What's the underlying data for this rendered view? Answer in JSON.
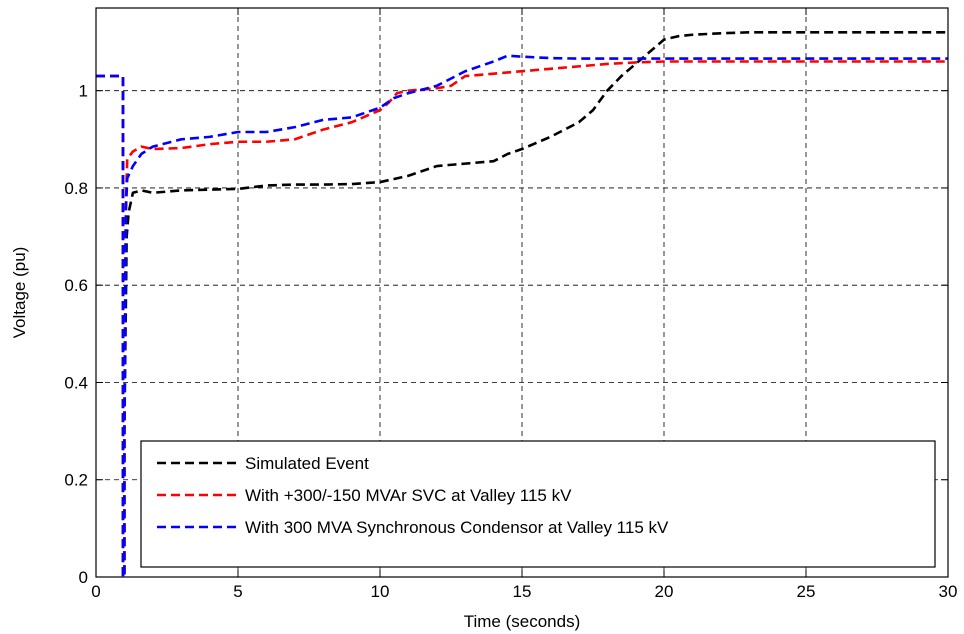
{
  "chart_data": {
    "type": "line",
    "title": "",
    "xlabel": "Time (seconds)",
    "ylabel": "Voltage (pu)",
    "xlim": [
      0,
      30
    ],
    "ylim": [
      0,
      1.17
    ],
    "xticks": [
      0,
      5,
      10,
      15,
      20,
      25,
      30
    ],
    "yticks": [
      0,
      0.2,
      0.4,
      0.6,
      0.8,
      1
    ],
    "grid": true,
    "legend_position": "bottom-center",
    "series": [
      {
        "name": "Simulated Event",
        "color": "#000000",
        "x": [
          0,
          0.95,
          0.95,
          1.0,
          1.0,
          1.08,
          1.15,
          1.3,
          1.6,
          2,
          3,
          5,
          6,
          7,
          8,
          9,
          10,
          11,
          12,
          13,
          14,
          14.5,
          15,
          16,
          17,
          17.5,
          18,
          18.5,
          19,
          19.5,
          20,
          20.5,
          21,
          22,
          23,
          24,
          25,
          30
        ],
        "y": [
          1.03,
          1.03,
          0.0,
          0.0,
          0.3,
          0.7,
          0.75,
          0.79,
          0.795,
          0.79,
          0.795,
          0.798,
          0.805,
          0.807,
          0.807,
          0.808,
          0.812,
          0.825,
          0.845,
          0.85,
          0.855,
          0.87,
          0.88,
          0.905,
          0.935,
          0.96,
          1.0,
          1.03,
          1.055,
          1.08,
          1.105,
          1.112,
          1.115,
          1.118,
          1.12,
          1.12,
          1.12,
          1.12
        ]
      },
      {
        "name": "With +300/-150 MVAr SVC at Valley 115 kV",
        "color": "#ff0000",
        "x": [
          0,
          0.95,
          0.95,
          1.0,
          1.0,
          1.05,
          1.1,
          1.3,
          1.6,
          2,
          3,
          4,
          5,
          6,
          7,
          8,
          9,
          10,
          10.3,
          10.6,
          11,
          12,
          12.5,
          13,
          14,
          15,
          16,
          17,
          18,
          19,
          20,
          25,
          30
        ],
        "y": [
          1.03,
          1.03,
          0.0,
          0.0,
          0.3,
          0.76,
          0.86,
          0.875,
          0.885,
          0.88,
          0.882,
          0.89,
          0.895,
          0.895,
          0.9,
          0.92,
          0.935,
          0.96,
          0.975,
          0.995,
          1.0,
          1.005,
          1.01,
          1.03,
          1.035,
          1.04,
          1.045,
          1.05,
          1.055,
          1.058,
          1.06,
          1.06,
          1.06
        ]
      },
      {
        "name": "With 300 MVA Synchronous Condensor at Valley 115 kV",
        "color": "#0000ff",
        "x": [
          0,
          0.95,
          0.95,
          1.0,
          1.0,
          1.05,
          1.1,
          1.3,
          1.6,
          2,
          3,
          4,
          5,
          6,
          7,
          8,
          9,
          10,
          10.5,
          11,
          12,
          13,
          14,
          14.5,
          15,
          16,
          17,
          18,
          20,
          30
        ],
        "y": [
          1.03,
          1.03,
          0.0,
          0.0,
          0.3,
          0.75,
          0.82,
          0.845,
          0.87,
          0.885,
          0.9,
          0.905,
          0.915,
          0.915,
          0.925,
          0.94,
          0.945,
          0.965,
          0.985,
          0.995,
          1.01,
          1.04,
          1.06,
          1.072,
          1.07,
          1.067,
          1.066,
          1.066,
          1.066,
          1.066
        ]
      }
    ]
  }
}
